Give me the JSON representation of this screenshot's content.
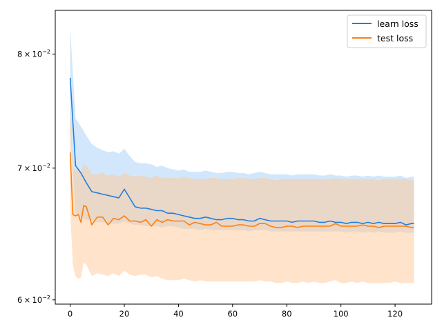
{
  "colors": {
    "learn": "#1f7fe0",
    "test": "#ff7f0e",
    "learn_band": "#a6cff7",
    "test_band": "#ffc796"
  },
  "chart_data": {
    "type": "line",
    "title": "",
    "xlabel": "",
    "ylabel": "",
    "yscale": "log",
    "xlim": [
      -5.5,
      133.5
    ],
    "ylim": [
      0.0597,
      0.0842
    ],
    "grid": false,
    "legend_position": "upper right",
    "x_ticks": [
      0,
      20,
      40,
      60,
      80,
      100,
      120
    ],
    "x_tick_labels": [
      "0",
      "20",
      "40",
      "60",
      "80",
      "100",
      "120"
    ],
    "y_ticks": [
      0.06,
      0.07,
      0.08
    ],
    "y_tick_labels": [
      {
        "mantissa": "6",
        "sep": "×",
        "base": "10",
        "exp": "−2"
      },
      {
        "mantissa": "7",
        "sep": "×",
        "base": "10",
        "exp": "−2"
      },
      {
        "mantissa": "8",
        "sep": "×",
        "base": "10",
        "exp": "−2"
      }
    ],
    "series": [
      {
        "name": "learn loss",
        "x": [
          0,
          2,
          4,
          6,
          8,
          10,
          12,
          14,
          16,
          18,
          20,
          22,
          24,
          26,
          28,
          30,
          32,
          34,
          36,
          38,
          40,
          42,
          44,
          46,
          48,
          50,
          52,
          54,
          56,
          58,
          60,
          62,
          64,
          66,
          68,
          70,
          72,
          74,
          76,
          78,
          80,
          82,
          84,
          86,
          88,
          90,
          92,
          94,
          96,
          98,
          100,
          102,
          104,
          106,
          108,
          110,
          112,
          114,
          116,
          118,
          120,
          122,
          124,
          126,
          127
        ],
        "values": [
          0.0778,
          0.0702,
          0.0696,
          0.0688,
          0.0681,
          0.068,
          0.0679,
          0.0678,
          0.0677,
          0.0676,
          0.0683,
          0.0676,
          0.0669,
          0.0668,
          0.0668,
          0.0667,
          0.0666,
          0.0666,
          0.0664,
          0.0664,
          0.0663,
          0.0662,
          0.0661,
          0.066,
          0.066,
          0.0661,
          0.066,
          0.0659,
          0.0659,
          0.066,
          0.066,
          0.0659,
          0.0659,
          0.0658,
          0.0658,
          0.066,
          0.0659,
          0.0658,
          0.0658,
          0.0658,
          0.0658,
          0.0657,
          0.0658,
          0.0658,
          0.0658,
          0.0658,
          0.0657,
          0.0657,
          0.0658,
          0.0657,
          0.0657,
          0.0656,
          0.0657,
          0.0657,
          0.0656,
          0.0657,
          0.0656,
          0.0657,
          0.0656,
          0.0656,
          0.0656,
          0.0657,
          0.0655,
          0.0656,
          0.0656
        ],
        "lower": [
          0.0734,
          0.0664,
          0.066,
          0.0659,
          0.0658,
          0.0657,
          0.0657,
          0.0656,
          0.0656,
          0.0656,
          0.0658,
          0.0656,
          0.0655,
          0.0655,
          0.0654,
          0.0654,
          0.0654,
          0.0653,
          0.0654,
          0.0654,
          0.0653,
          0.0652,
          0.0652,
          0.0652,
          0.0651,
          0.0652,
          0.0651,
          0.0651,
          0.0651,
          0.0651,
          0.0651,
          0.0651,
          0.0651,
          0.065,
          0.0651,
          0.0651,
          0.0651,
          0.065,
          0.065,
          0.065,
          0.065,
          0.065,
          0.065,
          0.065,
          0.065,
          0.065,
          0.065,
          0.065,
          0.065,
          0.065,
          0.065,
          0.0649,
          0.065,
          0.065,
          0.0649,
          0.065,
          0.0649,
          0.065,
          0.0649,
          0.0649,
          0.0649,
          0.065,
          0.0649,
          0.0649,
          0.0649
        ],
        "upper": [
          0.0825,
          0.0742,
          0.0735,
          0.0727,
          0.072,
          0.0717,
          0.0715,
          0.0713,
          0.0714,
          0.0712,
          0.0716,
          0.071,
          0.0705,
          0.0704,
          0.0704,
          0.0703,
          0.0701,
          0.0702,
          0.07,
          0.0699,
          0.0698,
          0.0699,
          0.0697,
          0.0697,
          0.0697,
          0.0698,
          0.0697,
          0.0696,
          0.0696,
          0.0697,
          0.0697,
          0.0696,
          0.0696,
          0.0695,
          0.0696,
          0.0697,
          0.0696,
          0.0695,
          0.0695,
          0.0695,
          0.0695,
          0.0694,
          0.0695,
          0.0695,
          0.0695,
          0.0695,
          0.0694,
          0.0694,
          0.0695,
          0.0694,
          0.0694,
          0.0693,
          0.0694,
          0.0694,
          0.0693,
          0.0694,
          0.0693,
          0.0694,
          0.0693,
          0.0693,
          0.0693,
          0.0694,
          0.0692,
          0.0693,
          0.0693
        ]
      },
      {
        "name": "test loss",
        "x": [
          0,
          1,
          2,
          3,
          4,
          5,
          6,
          8,
          10,
          12,
          14,
          16,
          18,
          20,
          22,
          24,
          26,
          28,
          30,
          32,
          34,
          36,
          38,
          40,
          42,
          44,
          46,
          48,
          50,
          52,
          54,
          56,
          58,
          60,
          62,
          64,
          66,
          68,
          70,
          72,
          74,
          76,
          78,
          80,
          82,
          84,
          86,
          88,
          90,
          92,
          94,
          96,
          98,
          100,
          102,
          104,
          106,
          108,
          110,
          112,
          114,
          116,
          118,
          120,
          122,
          124,
          126,
          127
        ],
        "values": [
          0.0713,
          0.0663,
          0.0662,
          0.0663,
          0.0657,
          0.067,
          0.0669,
          0.0655,
          0.0661,
          0.0661,
          0.0655,
          0.066,
          0.0659,
          0.0662,
          0.0658,
          0.0658,
          0.0657,
          0.0659,
          0.0654,
          0.0659,
          0.0657,
          0.0659,
          0.0658,
          0.0658,
          0.0658,
          0.0655,
          0.0657,
          0.0656,
          0.0655,
          0.0655,
          0.0657,
          0.0654,
          0.0654,
          0.0654,
          0.0655,
          0.0655,
          0.0654,
          0.0654,
          0.0656,
          0.0656,
          0.0654,
          0.0653,
          0.0653,
          0.0654,
          0.0654,
          0.0653,
          0.0654,
          0.0654,
          0.0654,
          0.0654,
          0.0654,
          0.0654,
          0.0656,
          0.0654,
          0.0654,
          0.0654,
          0.0654,
          0.0655,
          0.0654,
          0.0654,
          0.0653,
          0.0654,
          0.0654,
          0.0654,
          0.0654,
          0.0654,
          0.0653,
          0.0653
        ],
        "lower": [
          0.0666,
          0.0625,
          0.0617,
          0.0615,
          0.0616,
          0.0627,
          0.0625,
          0.0617,
          0.0619,
          0.0618,
          0.0617,
          0.0619,
          0.0617,
          0.0621,
          0.0618,
          0.0617,
          0.0618,
          0.0618,
          0.0616,
          0.0617,
          0.0615,
          0.0614,
          0.0614,
          0.0614,
          0.0615,
          0.0614,
          0.0613,
          0.0614,
          0.0613,
          0.0613,
          0.0613,
          0.0613,
          0.0613,
          0.0613,
          0.0613,
          0.0613,
          0.0613,
          0.0613,
          0.0614,
          0.0613,
          0.0613,
          0.0612,
          0.0612,
          0.0613,
          0.0612,
          0.0612,
          0.0613,
          0.0612,
          0.0613,
          0.0612,
          0.0612,
          0.0613,
          0.0614,
          0.0612,
          0.0612,
          0.0613,
          0.0612,
          0.0613,
          0.0612,
          0.0612,
          0.0612,
          0.0612,
          0.0612,
          0.0613,
          0.0612,
          0.0612,
          0.0612,
          0.0612
        ],
        "upper": [
          0.0752,
          0.0701,
          0.0698,
          0.0699,
          0.0697,
          0.0703,
          0.0702,
          0.0695,
          0.0695,
          0.0696,
          0.0694,
          0.0695,
          0.0693,
          0.0696,
          0.0694,
          0.0693,
          0.0694,
          0.0693,
          0.0692,
          0.0694,
          0.0692,
          0.0692,
          0.0692,
          0.0692,
          0.0693,
          0.0692,
          0.0691,
          0.0691,
          0.0691,
          0.0692,
          0.0692,
          0.0691,
          0.0691,
          0.0691,
          0.0692,
          0.0692,
          0.0691,
          0.0691,
          0.0692,
          0.0692,
          0.0691,
          0.069,
          0.0691,
          0.0691,
          0.0691,
          0.0691,
          0.0691,
          0.0691,
          0.0691,
          0.0691,
          0.0691,
          0.0691,
          0.0692,
          0.0691,
          0.0691,
          0.0691,
          0.0691,
          0.0691,
          0.0691,
          0.0691,
          0.069,
          0.0691,
          0.0691,
          0.0691,
          0.0691,
          0.0691,
          0.069,
          0.069
        ]
      }
    ]
  }
}
